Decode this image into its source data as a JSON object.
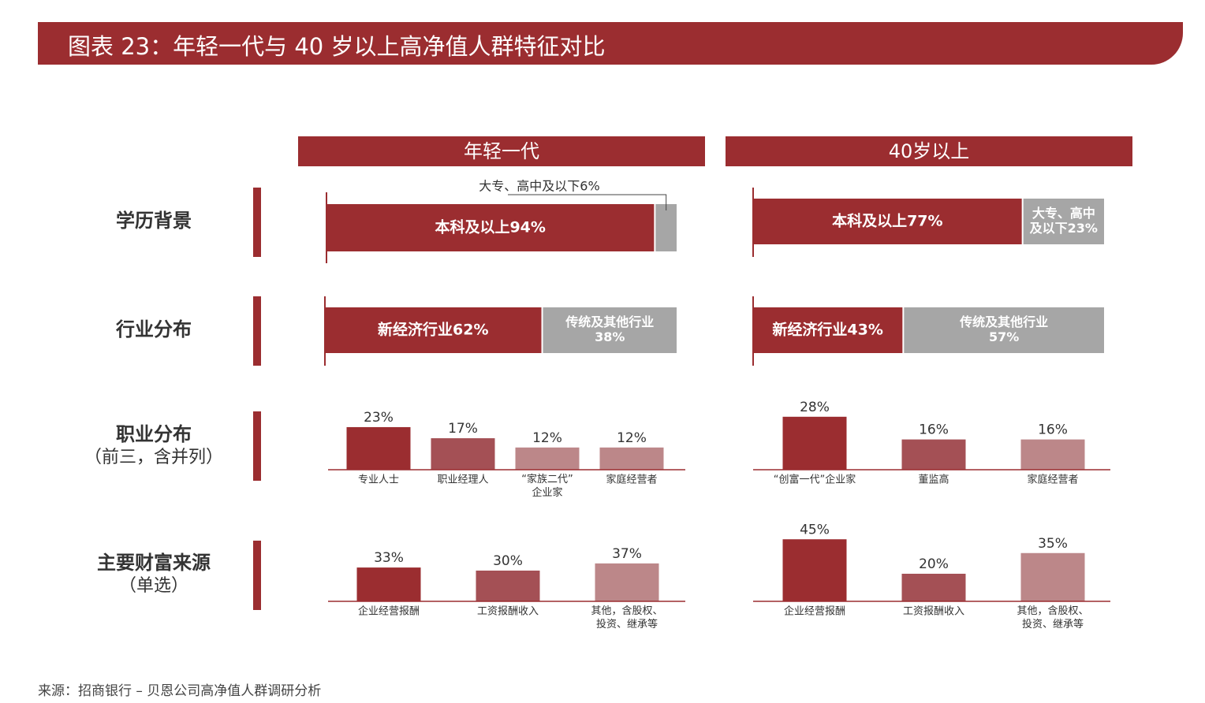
{
  "title": "图表 23：年轻一代与 40 岁以上高净值人群特征对比",
  "groups": [
    "年轻一代",
    "40岁以上"
  ],
  "rows": {
    "education": {
      "label": "学历背景"
    },
    "industry": {
      "label": "行业分布"
    },
    "occupation": {
      "label": "职业分布",
      "sublabel": "（前三，含并列）"
    },
    "wealth": {
      "label": "主要财富来源",
      "sublabel": "（单选）"
    }
  },
  "colors": {
    "primary": "#9b2d30",
    "grey": "#a6a6a6",
    "mid": "#a45055",
    "light": "#bc8789"
  },
  "source": "来源：招商银行 – 贝恩公司高净值人群调研分析",
  "chart_data": [
    {
      "type": "bar",
      "orientation": "horizontal-stacked",
      "group": "年轻一代",
      "row": "学历背景",
      "segments": [
        {
          "label": "本科及以上94%",
          "value": 94,
          "color": "#9b2d30"
        },
        {
          "label": "大专、高中及以下6%",
          "value": 6,
          "color": "#a6a6a6",
          "callout": true
        }
      ]
    },
    {
      "type": "bar",
      "orientation": "horizontal-stacked",
      "group": "40岁以上",
      "row": "学历背景",
      "segments": [
        {
          "label": "本科及以上77%",
          "value": 77,
          "color": "#9b2d30"
        },
        {
          "label": "大专、高中\n及以下23%",
          "value": 23,
          "color": "#a6a6a6"
        }
      ]
    },
    {
      "type": "bar",
      "orientation": "horizontal-stacked",
      "group": "年轻一代",
      "row": "行业分布",
      "segments": [
        {
          "label": "新经济行业62%",
          "value": 62,
          "color": "#9b2d30"
        },
        {
          "label": "传统及其他行业\n38%",
          "value": 38,
          "color": "#a6a6a6"
        }
      ]
    },
    {
      "type": "bar",
      "orientation": "horizontal-stacked",
      "group": "40岁以上",
      "row": "行业分布",
      "segments": [
        {
          "label": "新经济行业43%",
          "value": 43,
          "color": "#9b2d30"
        },
        {
          "label": "传统及其他行业\n57%",
          "value": 57,
          "color": "#a6a6a6"
        }
      ]
    },
    {
      "type": "bar",
      "group": "年轻一代",
      "row": "职业分布",
      "categories": [
        "专业人士",
        "职业经理人",
        "“家族二代”\n企业家",
        "家庭经营者"
      ],
      "values": [
        23,
        17,
        12,
        12
      ],
      "value_labels": [
        "23%",
        "17%",
        "12%",
        "12%"
      ],
      "colors": [
        "#9b2d30",
        "#a45055",
        "#bc8789",
        "#bc8789"
      ]
    },
    {
      "type": "bar",
      "group": "40岁以上",
      "row": "职业分布",
      "categories": [
        "“创富一代”企业家",
        "董监高",
        "家庭经营者"
      ],
      "values": [
        28,
        16,
        16
      ],
      "value_labels": [
        "28%",
        "16%",
        "16%"
      ],
      "colors": [
        "#9b2d30",
        "#a45055",
        "#bc8789"
      ]
    },
    {
      "type": "bar",
      "group": "年轻一代",
      "row": "主要财富来源",
      "categories": [
        "企业经营报酬",
        "工资报酬收入",
        "其他，含股权、\n投资、继承等"
      ],
      "values": [
        33,
        30,
        37
      ],
      "value_labels": [
        "33%",
        "30%",
        "37%"
      ],
      "colors": [
        "#9b2d30",
        "#a45055",
        "#bc8789"
      ]
    },
    {
      "type": "bar",
      "group": "40岁以上",
      "row": "主要财富来源",
      "categories": [
        "企业经营报酬",
        "工资报酬收入",
        "其他，含股权、\n投资、继承等"
      ],
      "values": [
        45,
        20,
        35
      ],
      "value_labels": [
        "45%",
        "20%",
        "35%"
      ],
      "colors": [
        "#9b2d30",
        "#a45055",
        "#bc8789"
      ]
    }
  ]
}
